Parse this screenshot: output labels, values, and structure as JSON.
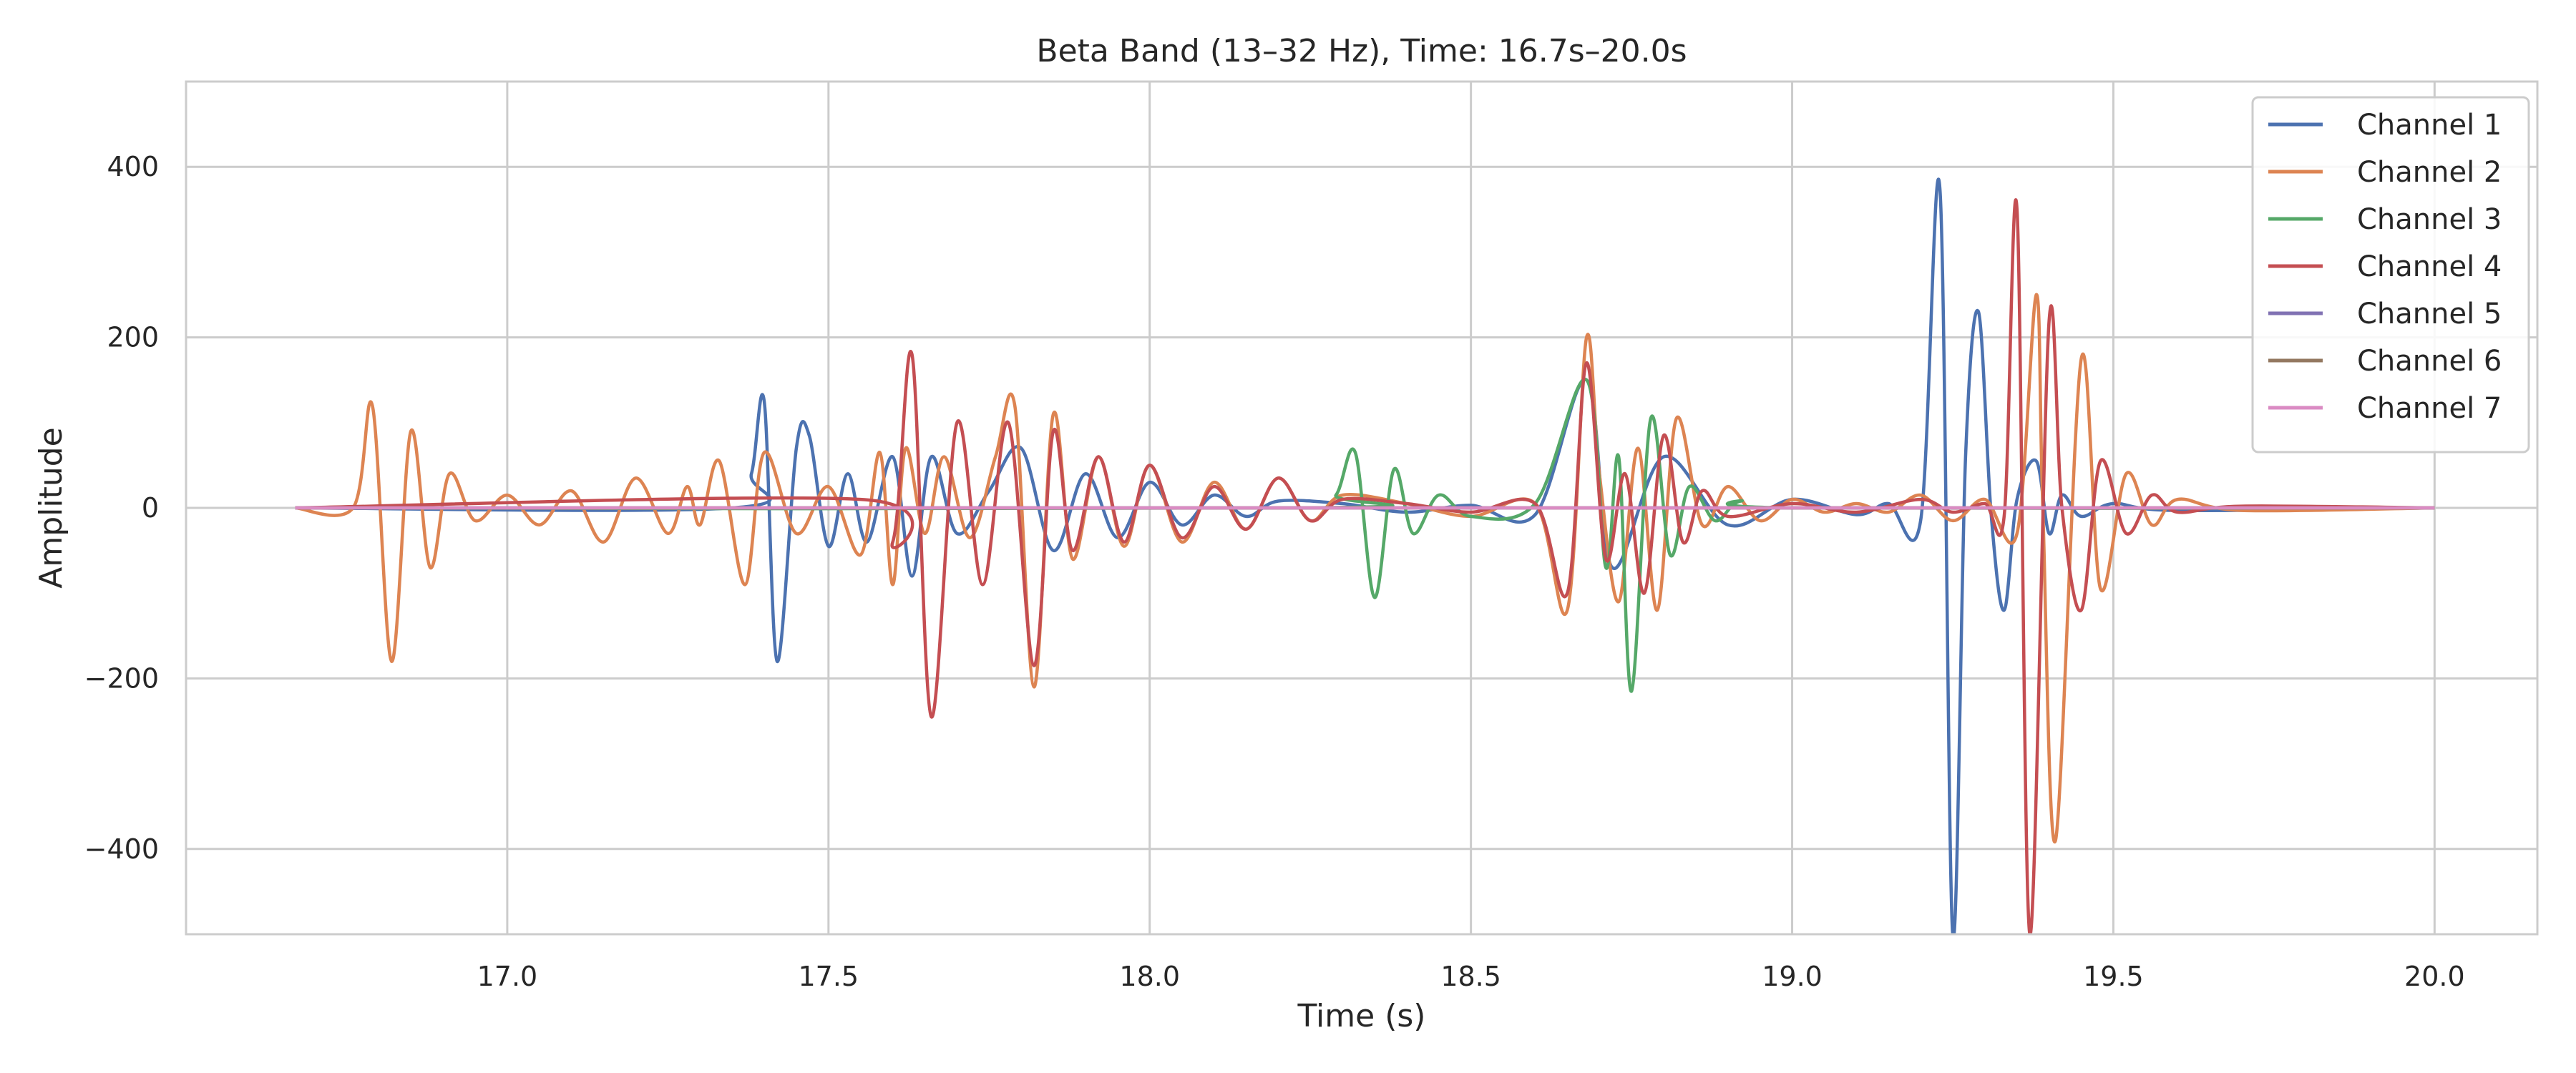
{
  "chart_data": {
    "type": "line",
    "title": "Beta Band (13–32 Hz), Time: 16.7s–20.0s",
    "xlabel": "Time (s)",
    "ylabel": "Amplitude",
    "xlim": [
      16.5,
      20.16
    ],
    "ylim": [
      -500,
      500
    ],
    "xticks": [
      17.0,
      17.5,
      18.0,
      18.5,
      19.0,
      19.5,
      20.0
    ],
    "xtick_labels": [
      "17.0",
      "17.5",
      "18.0",
      "18.5",
      "19.0",
      "19.5",
      "20.0"
    ],
    "yticks": [
      -400,
      -200,
      0,
      200,
      400
    ],
    "ytick_labels": [
      "−400",
      "−200",
      "0",
      "200",
      "400"
    ],
    "grid": true,
    "legend_position": "top-right",
    "series": [
      {
        "name": "Channel 1",
        "color": "#4c72b0",
        "x": [
          16.67,
          17.35,
          17.38,
          17.4,
          17.42,
          17.45,
          17.47,
          17.5,
          17.53,
          17.56,
          17.6,
          17.63,
          17.66,
          17.7,
          17.75,
          17.8,
          17.85,
          17.9,
          17.95,
          18.0,
          18.05,
          18.1,
          18.15,
          18.2,
          18.3,
          18.4,
          18.5,
          18.6,
          18.68,
          18.72,
          18.8,
          18.9,
          19.0,
          19.1,
          19.15,
          19.2,
          19.23,
          19.25,
          19.27,
          19.29,
          19.31,
          19.33,
          19.35,
          19.38,
          19.4,
          19.42,
          19.45,
          19.5,
          19.6,
          20.0
        ],
        "y": [
          0,
          0,
          40,
          125,
          -180,
          70,
          85,
          -45,
          40,
          -40,
          60,
          -80,
          60,
          -30,
          20,
          70,
          -50,
          40,
          -35,
          30,
          -20,
          15,
          -10,
          8,
          5,
          -5,
          3,
          -8,
          150,
          -70,
          60,
          -20,
          10,
          -8,
          5,
          -15,
          375,
          -500,
          60,
          230,
          -10,
          -120,
          10,
          55,
          -30,
          15,
          -10,
          5,
          -3,
          0
        ]
      },
      {
        "name": "Channel 2",
        "color": "#dd8452",
        "x": [
          16.67,
          16.76,
          16.79,
          16.82,
          16.85,
          16.88,
          16.91,
          16.95,
          17.0,
          17.05,
          17.1,
          17.15,
          17.2,
          17.25,
          17.28,
          17.3,
          17.33,
          17.37,
          17.4,
          17.45,
          17.5,
          17.55,
          17.58,
          17.6,
          17.62,
          17.65,
          17.68,
          17.72,
          17.76,
          17.79,
          17.82,
          17.85,
          17.88,
          17.92,
          17.96,
          18.0,
          18.05,
          18.1,
          18.15,
          18.2,
          18.25,
          18.3,
          18.4,
          18.5,
          18.6,
          18.65,
          18.68,
          18.7,
          18.73,
          18.76,
          18.79,
          18.82,
          18.86,
          18.9,
          18.95,
          19.0,
          19.05,
          19.1,
          19.15,
          19.2,
          19.25,
          19.3,
          19.35,
          19.38,
          19.39,
          19.41,
          19.45,
          19.48,
          19.52,
          19.56,
          19.6,
          19.7,
          20.0
        ],
        "y": [
          0,
          0,
          120,
          -180,
          90,
          -70,
          40,
          -15,
          15,
          -20,
          20,
          -40,
          35,
          -30,
          25,
          -20,
          55,
          -90,
          65,
          -30,
          25,
          -55,
          65,
          -90,
          70,
          -30,
          60,
          -35,
          60,
          120,
          -210,
          110,
          -60,
          60,
          -45,
          50,
          -40,
          30,
          -25,
          35,
          -15,
          15,
          5,
          -10,
          5,
          -120,
          200,
          40,
          -110,
          70,
          -120,
          105,
          -20,
          25,
          -15,
          10,
          -5,
          5,
          -5,
          15,
          -15,
          10,
          -30,
          250,
          5,
          -390,
          175,
          -95,
          40,
          -20,
          10,
          -3,
          0
        ]
      },
      {
        "name": "Channel 3",
        "color": "#55a868",
        "x": [
          16.67,
          18.25,
          18.29,
          18.32,
          18.35,
          18.38,
          18.41,
          18.45,
          18.5,
          18.6,
          18.68,
          18.71,
          18.73,
          18.75,
          18.78,
          18.81,
          18.84,
          18.88,
          18.92,
          19.0,
          20.0
        ],
        "y": [
          0,
          0,
          15,
          65,
          -105,
          45,
          -30,
          15,
          -10,
          5,
          150,
          -70,
          60,
          -215,
          105,
          -55,
          25,
          -15,
          8,
          0,
          0
        ]
      },
      {
        "name": "Channel 4",
        "color": "#c44e52",
        "x": [
          16.67,
          17.55,
          17.6,
          17.63,
          17.66,
          17.7,
          17.74,
          17.78,
          17.82,
          17.85,
          17.88,
          17.92,
          17.96,
          18.0,
          18.05,
          18.1,
          18.15,
          18.2,
          18.25,
          18.3,
          18.4,
          18.5,
          18.6,
          18.65,
          18.68,
          18.71,
          18.74,
          18.77,
          18.8,
          18.83,
          18.86,
          18.9,
          19.0,
          19.1,
          19.2,
          19.25,
          19.3,
          19.33,
          19.35,
          19.37,
          19.4,
          19.42,
          19.45,
          19.48,
          19.52,
          19.56,
          19.6,
          19.7,
          20.0
        ],
        "y": [
          0,
          10,
          -40,
          180,
          -245,
          100,
          -90,
          100,
          -185,
          90,
          -50,
          60,
          -40,
          50,
          -35,
          25,
          -25,
          35,
          -15,
          10,
          5,
          -5,
          5,
          -100,
          170,
          -60,
          40,
          -100,
          85,
          -40,
          20,
          -10,
          5,
          -5,
          10,
          -5,
          5,
          -10,
          350,
          -500,
          220,
          0,
          -120,
          55,
          -30,
          15,
          -5,
          2,
          0
        ]
      },
      {
        "name": "Channel 5",
        "color": "#8172b3",
        "x": [
          16.67,
          20.0
        ],
        "y": [
          0,
          0
        ]
      },
      {
        "name": "Channel 6",
        "color": "#937860",
        "x": [
          16.67,
          20.0
        ],
        "y": [
          0,
          0
        ]
      },
      {
        "name": "Channel 7",
        "color": "#da8bc3",
        "x": [
          16.67,
          20.0
        ],
        "y": [
          0,
          0
        ]
      }
    ]
  }
}
